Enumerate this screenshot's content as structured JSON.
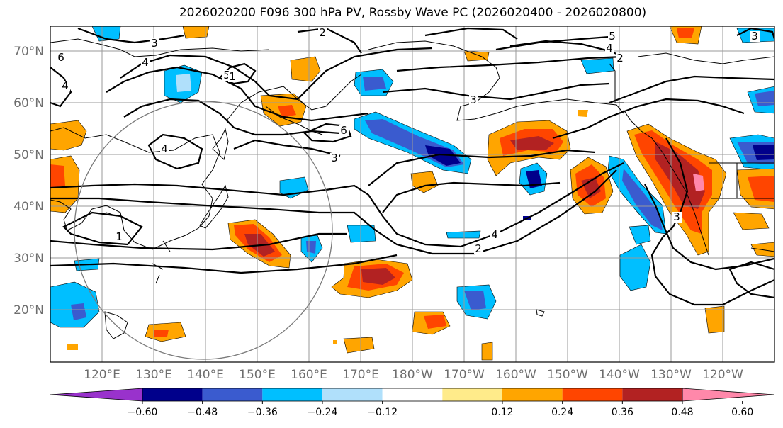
{
  "title": "2026020200 F096 300 hPa PV, Rossby Wave PC (2026020400 - 2026020800)",
  "lat_labels": [
    "70°N",
    "60°N",
    "50°N",
    "40°N",
    "30°N",
    "20°N"
  ],
  "lon_labels": [
    "120°E",
    "130°E",
    "140°E",
    "150°E",
    "160°E",
    "170°E",
    "180°W",
    "170°W",
    "160°W",
    "150°W",
    "140°W",
    "130°W",
    "120°W"
  ],
  "contour_labels": [
    "2",
    "3",
    "4",
    "5",
    "6",
    "1",
    "2",
    "3",
    "4",
    "6",
    "4",
    "3",
    "4",
    "2",
    "3",
    "5",
    "4",
    "1",
    "3"
  ],
  "colorbar": {
    "ticks": [
      "−0.60",
      "−0.48",
      "−0.36",
      "−0.24",
      "−0.12",
      "0.12",
      "0.24",
      "0.36",
      "0.48",
      "0.60"
    ],
    "colors": [
      "#9932cc",
      "#00008b",
      "#3a5bcf",
      "#00bfff",
      "#b0e0fb",
      "#ffffff",
      "#ffeb8a",
      "#ffa500",
      "#ff4500",
      "#b22222",
      "#ff88aa"
    ]
  },
  "fill_colors": {
    "neg1": "#b0e0fb",
    "neg2": "#00bfff",
    "neg3": "#3a5bcf",
    "neg4": "#00008b",
    "pos1": "#ffeb8a",
    "pos2": "#ffa500",
    "pos3": "#ff4500",
    "pos4": "#b22222",
    "pos5": "#ff88aa"
  }
}
